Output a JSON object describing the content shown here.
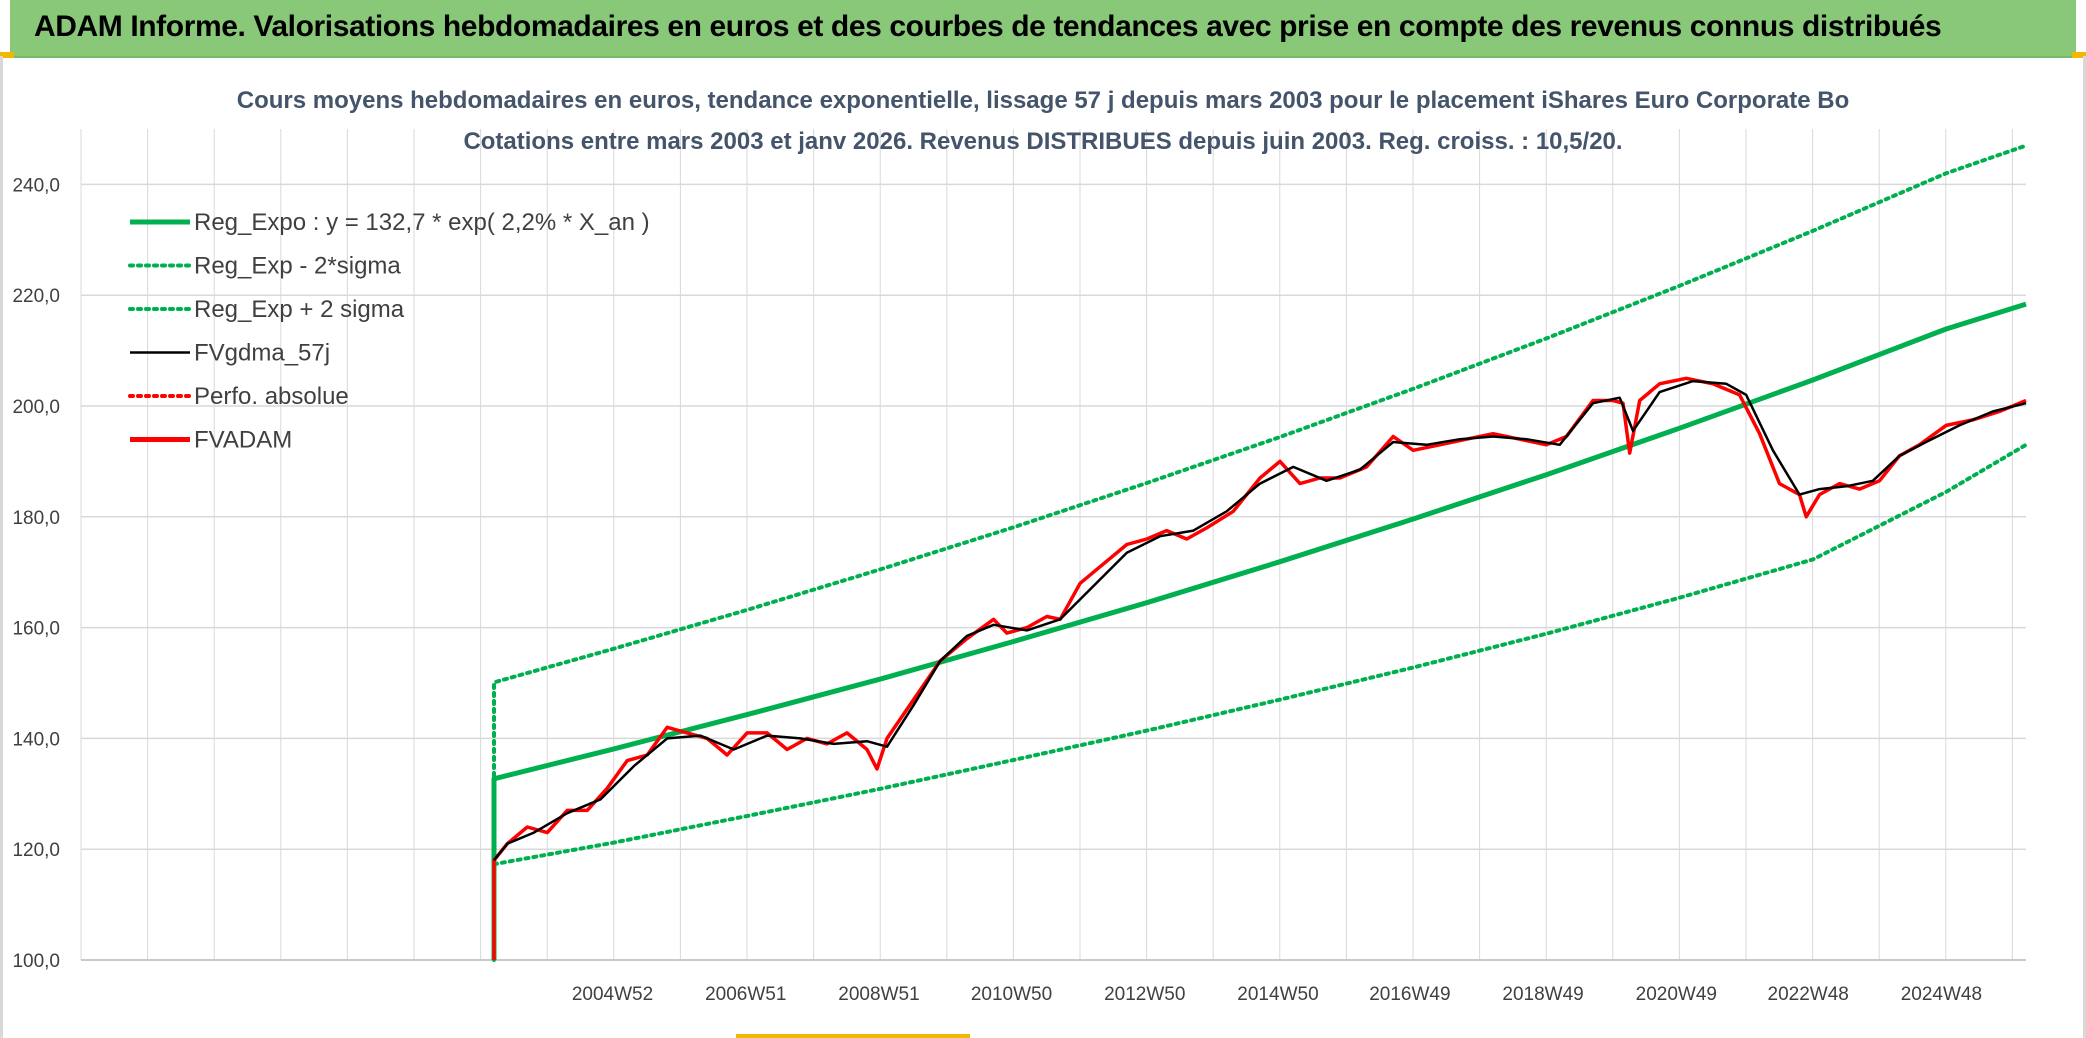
{
  "header": {
    "title": "ADAM Informe. Valorisations hebdomadaires en euros et des courbes de tendances avec prise en compte des revenus connus distribués"
  },
  "colors": {
    "header_bg": "#88c878",
    "green": "#00b050",
    "red": "#ff0000",
    "black": "#000000",
    "grid": "#d9d9d9",
    "accent": "#f2b800"
  },
  "chart_data": {
    "type": "line",
    "title": "Cours moyens hebdomadaires en euros, tendance exponentielle, lissage 57 j depuis mars 2003 pour le placement iShares Euro Corporate Bo",
    "subtitle": "Cotations entre mars 2003 et janv 2026. Revenus DISTRIBUES depuis juin 2003. Reg. croiss. : 10,5/20.",
    "xlabel": "",
    "ylabel": "",
    "ylim": [
      100,
      250
    ],
    "xlim": [
      1997.0,
      2026.2
    ],
    "yticks": [
      "100,0",
      "120,0",
      "140,0",
      "160,0",
      "180,0",
      "200,0",
      "220,0",
      "240,0"
    ],
    "xticks": [
      "2004W52",
      "2006W51",
      "2008W51",
      "2010W50",
      "2012W50",
      "2014W50",
      "2016W49",
      "2018W49",
      "2020W49",
      "2022W48",
      "2024W48"
    ],
    "xtick_positions": [
      2004.98,
      2006.98,
      2008.98,
      2010.97,
      2012.97,
      2014.97,
      2016.95,
      2018.95,
      2020.95,
      2022.93,
      2024.93
    ],
    "grid": true,
    "legend_position": "top-left",
    "series": [
      {
        "name": "Reg_Expo : y = 132,7 * exp( 2,2% *  X_an )",
        "style": "solid-thick",
        "color": "#00b050",
        "x": [
          2003.2,
          2003.2,
          2005,
          2007,
          2009,
          2011,
          2013,
          2015,
          2017,
          2019,
          2021,
          2023,
          2025,
          2026.2
        ],
        "values": [
          100,
          132.7,
          138.1,
          144.3,
          150.7,
          157.5,
          164.5,
          171.9,
          179.6,
          187.6,
          196.0,
          204.7,
          213.9,
          218.4
        ]
      },
      {
        "name": "Reg_Exp - 2*sigma",
        "style": "dotted",
        "color": "#00b050",
        "x": [
          2003.2,
          2005,
          2007,
          2009,
          2011,
          2013,
          2015,
          2017,
          2019,
          2021,
          2023,
          2025,
          2026.2
        ],
        "values": [
          117.3,
          121.2,
          126.0,
          130.9,
          136.1,
          141.4,
          147.0,
          152.8,
          158.9,
          165.4,
          172.3,
          184.5,
          193.0
        ]
      },
      {
        "name": "Reg_Exp + 2 sigma",
        "style": "dotted",
        "color": "#00b050",
        "x": [
          2003.2,
          2003.2,
          2005,
          2007,
          2009,
          2011,
          2013,
          2015,
          2017,
          2019,
          2021,
          2023,
          2025,
          2026.2
        ],
        "values": [
          100,
          150.1,
          156.2,
          163.2,
          170.5,
          178.1,
          186.1,
          194.4,
          203.1,
          212.2,
          221.7,
          231.6,
          242.0,
          247.0
        ]
      },
      {
        "name": "FVgdma_57j",
        "style": "solid",
        "color": "#000000",
        "x": [
          2003.2,
          2003.4,
          2003.8,
          2004.3,
          2004.8,
          2005.3,
          2005.8,
          2006.3,
          2006.8,
          2007.3,
          2007.8,
          2008.3,
          2008.8,
          2009.1,
          2009.5,
          2009.9,
          2010.3,
          2010.7,
          2011.2,
          2011.7,
          2012.2,
          2012.7,
          2013.2,
          2013.7,
          2014.2,
          2014.7,
          2015.2,
          2015.7,
          2016.2,
          2016.7,
          2017.2,
          2017.7,
          2018.2,
          2018.7,
          2019.2,
          2019.7,
          2020.1,
          2020.3,
          2020.7,
          2021.2,
          2021.7,
          2022.0,
          2022.4,
          2022.8,
          2023.1,
          2023.5,
          2023.9,
          2024.3,
          2024.7,
          2025.2,
          2025.7,
          2026.2
        ],
        "values": [
          118,
          121,
          123,
          126.5,
          129,
          135,
          140,
          140.5,
          138,
          140.5,
          140,
          139,
          139.5,
          138.5,
          146,
          154,
          158.5,
          160.5,
          159.5,
          161.5,
          167.5,
          173.5,
          176.5,
          177.5,
          181,
          186,
          189,
          186.5,
          188.5,
          193.5,
          193,
          194,
          194.5,
          194,
          193,
          200.5,
          201.5,
          195.5,
          202.5,
          204.5,
          204,
          202,
          192,
          184,
          185,
          185.5,
          186.5,
          191,
          193.5,
          196.5,
          199,
          200.5
        ]
      },
      {
        "name": "Perfo. absolue",
        "style": "dotted",
        "color": "#ff0000",
        "x": [],
        "values": []
      },
      {
        "name": "FVADAM",
        "style": "solid-thick",
        "color": "#ff0000",
        "x": [
          2003.2,
          2003.2,
          2003.4,
          2003.7,
          2004.0,
          2004.3,
          2004.6,
          2004.9,
          2005.2,
          2005.5,
          2005.8,
          2006.1,
          2006.4,
          2006.7,
          2007.0,
          2007.3,
          2007.6,
          2007.9,
          2008.2,
          2008.5,
          2008.8,
          2008.95,
          2009.1,
          2009.5,
          2009.9,
          2010.3,
          2010.7,
          2010.9,
          2011.2,
          2011.5,
          2011.7,
          2012.0,
          2012.3,
          2012.7,
          2013.0,
          2013.3,
          2013.6,
          2013.9,
          2014.3,
          2014.7,
          2015.0,
          2015.3,
          2015.6,
          2015.9,
          2016.3,
          2016.7,
          2017.0,
          2017.4,
          2017.8,
          2018.2,
          2018.6,
          2019.0,
          2019.3,
          2019.7,
          2020.0,
          2020.15,
          2020.25,
          2020.4,
          2020.7,
          2021.1,
          2021.5,
          2021.9,
          2022.2,
          2022.5,
          2022.8,
          2022.9,
          2023.1,
          2023.4,
          2023.7,
          2024.0,
          2024.3,
          2024.6,
          2025.0,
          2025.4,
          2025.8,
          2026.2
        ],
        "values": [
          100,
          118,
          121,
          124,
          123,
          127,
          127,
          131,
          136,
          137,
          142,
          141,
          140,
          137,
          141,
          141,
          138,
          140,
          139,
          141,
          138,
          134.5,
          140,
          147,
          154,
          158,
          161.5,
          159,
          160,
          162,
          161.5,
          168,
          171,
          175,
          176,
          177.5,
          176,
          178,
          181,
          187,
          190,
          186,
          187,
          187,
          189,
          194.5,
          192,
          193,
          194,
          195,
          194,
          193,
          194.5,
          201,
          201,
          200.5,
          191.5,
          201,
          204,
          205,
          204,
          202,
          195,
          186,
          184,
          180,
          184,
          186,
          185,
          186.5,
          191,
          193,
          196.5,
          197.5,
          199,
          201
        ]
      }
    ]
  }
}
